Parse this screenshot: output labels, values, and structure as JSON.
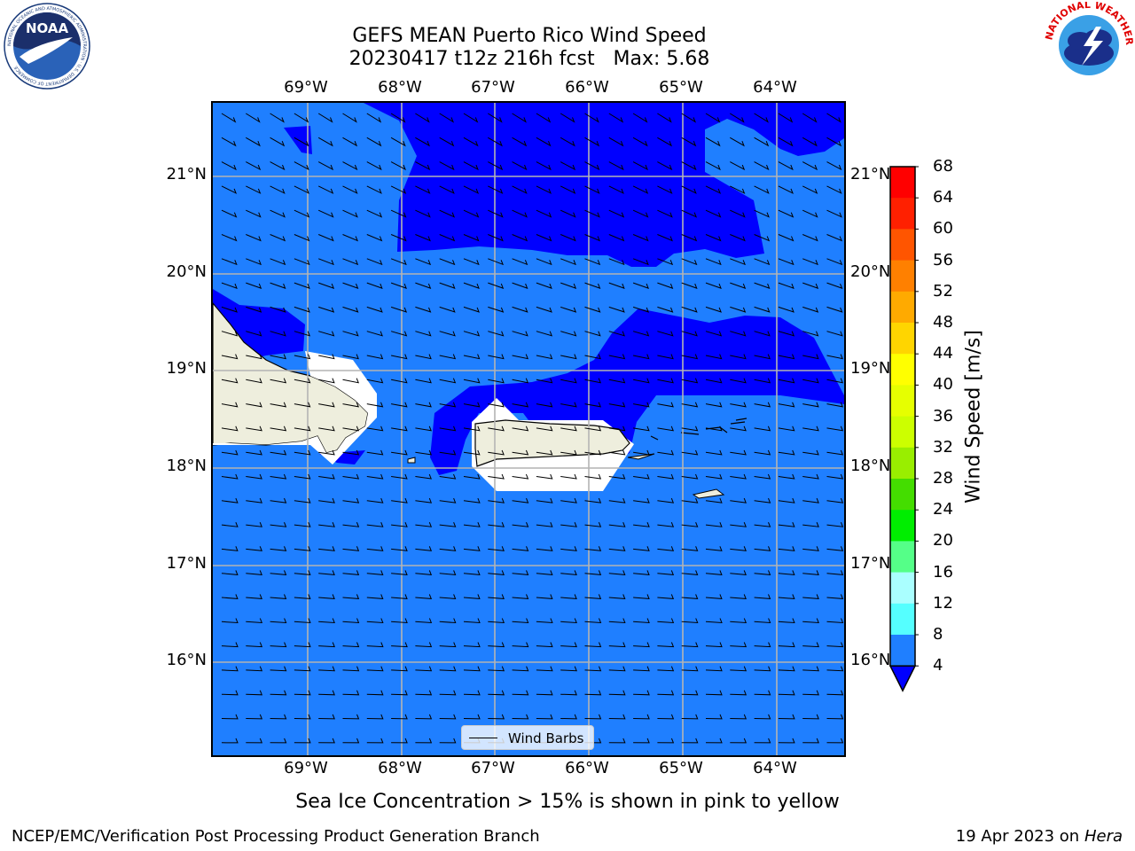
{
  "title": {
    "line1": "GEFS MEAN Puerto Rico Wind Speed",
    "line2": "20230417 t12z 216h fcst   Max: 5.68"
  },
  "axes": {
    "lon_labels": [
      "69°W",
      "68°W",
      "67°W",
      "66°W",
      "65°W",
      "64°W"
    ],
    "lat_labels": [
      "21°N",
      "20°N",
      "19°N",
      "18°N",
      "17°N",
      "16°N"
    ],
    "lon_values": [
      -69,
      -68,
      -67,
      -66,
      -65,
      -64
    ],
    "lat_values": [
      21,
      20,
      19,
      18,
      17,
      16
    ],
    "lon_range": [
      -70,
      -63.25
    ],
    "lat_range": [
      15,
      21.75
    ]
  },
  "legend": {
    "label": "Wind Barbs"
  },
  "colorbar": {
    "title": "Wind Speed [m/s]",
    "levels": [
      "68",
      "64",
      "60",
      "56",
      "52",
      "48",
      "44",
      "40",
      "36",
      "32",
      "28",
      "24",
      "20",
      "16",
      "12",
      "8",
      "4"
    ],
    "colors": [
      "#ff0000",
      "#ff2000",
      "#ff5500",
      "#ff8000",
      "#ffaa00",
      "#ffd500",
      "#ffff00",
      "#e6ff00",
      "#ccff00",
      "#99ee00",
      "#44dd00",
      "#00ee00",
      "#55ff88",
      "#aaffff",
      "#55ffff",
      "#00ffff",
      "#1f7fff"
    ],
    "extend_color": "#0000ff"
  },
  "field": {
    "background_color": "#1f7fff",
    "high_color": "#0000ff",
    "land_color": "#eeeedd"
  },
  "note": "Sea Ice Concentration > 15% is shown in pink to yellow",
  "footer": {
    "left": "NCEP/EMC/Verification Post Processing Product Generation Branch",
    "right_date": "19 Apr 2023 on",
    "right_host": "Hera"
  },
  "logos": {
    "left": {
      "name": "NOAA",
      "text": "NOAA",
      "ring_text": "NATIONAL OCEANIC AND ATMOSPHERIC ADMINISTRATION · U.S. DEPARTMENT OF COMMERCE"
    },
    "right": {
      "name": "National Weather Service",
      "ring_text": "NATIONAL WEATHER SERVICE"
    }
  }
}
